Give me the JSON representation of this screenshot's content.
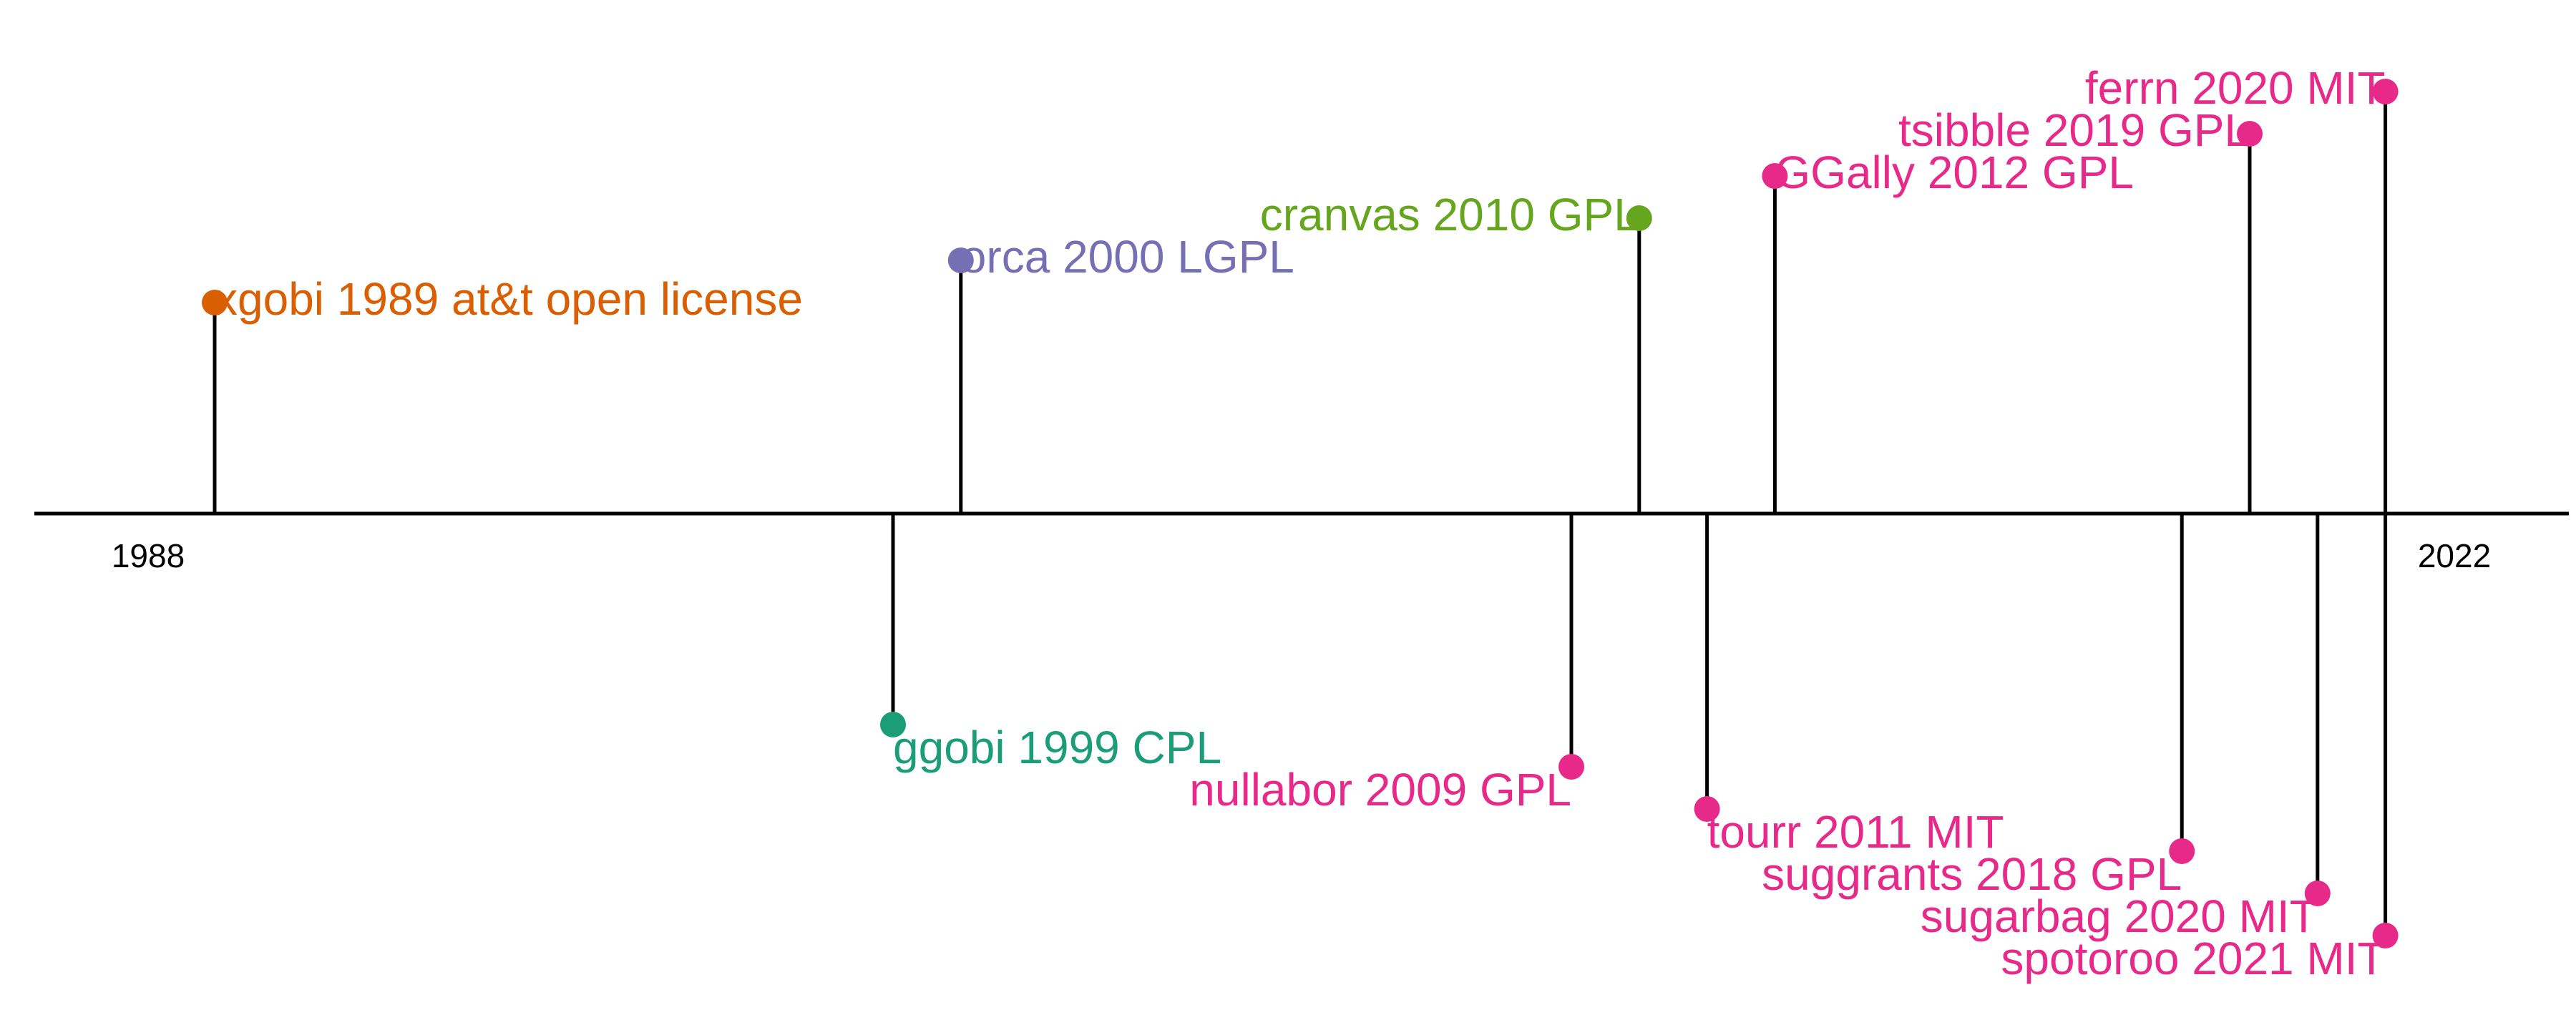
{
  "chart_data": {
    "type": "timeline",
    "x_range": [
      1988,
      2022
    ],
    "start_label": "1988",
    "end_label": "2022",
    "events": [
      {
        "name": "xgobi",
        "year": 1989,
        "license": "at&t open license",
        "label": "xgobi 1989 at&t open license",
        "color": "#D95F02",
        "side": "above",
        "level": 5
      },
      {
        "name": "ggobi",
        "year": 1999,
        "license": "CPL",
        "label": "ggobi 1999 CPL",
        "color": "#1B9E77",
        "side": "below",
        "level": 5
      },
      {
        "name": "orca",
        "year": 2000,
        "license": "LGPL",
        "label": "orca 2000 LGPL",
        "color": "#7570B3",
        "side": "above",
        "level": 6
      },
      {
        "name": "nullabor",
        "year": 2009,
        "license": "GPL",
        "label": "nullabor 2009 GPL",
        "color": "#E7298A",
        "side": "below",
        "level": 6
      },
      {
        "name": "cranvas",
        "year": 2010,
        "license": "GPL",
        "label": "cranvas 2010 GPL",
        "color": "#66A61E",
        "side": "above",
        "level": 7
      },
      {
        "name": "tourr",
        "year": 2011,
        "license": "MIT",
        "label": "tourr 2011 MIT",
        "color": "#E7298A",
        "side": "below",
        "level": 7
      },
      {
        "name": "GGally",
        "year": 2012,
        "license": "GPL",
        "label": "GGally 2012 GPL",
        "color": "#E7298A",
        "side": "above",
        "level": 8
      },
      {
        "name": "suggrants",
        "year": 2018,
        "license": "GPL",
        "label": "suggrants 2018 GPL",
        "color": "#E7298A",
        "side": "below",
        "level": 8
      },
      {
        "name": "tsibble",
        "year": 2019,
        "license": "GPL",
        "label": "tsibble 2019 GPL",
        "color": "#E7298A",
        "side": "above",
        "level": 9
      },
      {
        "name": "sugarbag",
        "year": 2020,
        "license": "MIT",
        "label": "sugarbag 2020 MIT",
        "color": "#E7298A",
        "side": "below",
        "level": 9
      },
      {
        "name": "ferrn",
        "year": 2020,
        "license": "MIT",
        "label": "ferrn 2020 MIT",
        "color": "#E7298A",
        "side": "above",
        "level": 10
      },
      {
        "name": "spotoroo",
        "year": 2021,
        "license": "MIT",
        "label": "spotoroo 2021 MIT",
        "color": "#E7298A",
        "side": "below",
        "level": 10
      }
    ]
  }
}
